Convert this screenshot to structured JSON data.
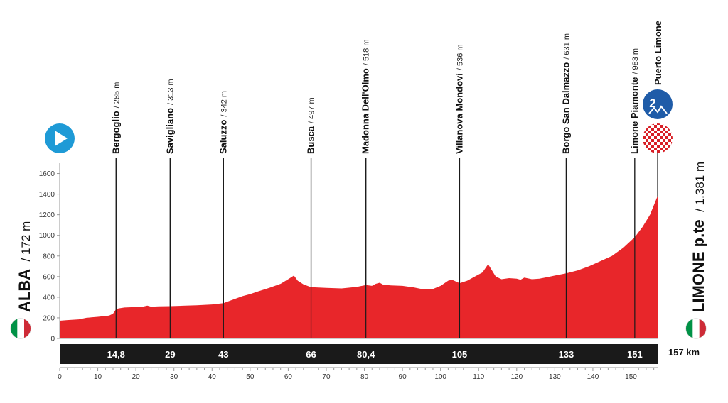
{
  "chart_data": {
    "type": "area",
    "title": "",
    "xlabel": "",
    "ylabel": "",
    "xlim": [
      0,
      157
    ],
    "ylim": [
      0,
      1700
    ],
    "x_ticks": [
      0,
      10,
      20,
      30,
      40,
      50,
      60,
      70,
      80,
      90,
      100,
      110,
      120,
      130,
      140,
      150
    ],
    "y_ticks": [
      0,
      200,
      400,
      600,
      800,
      1000,
      1200,
      1400,
      1600
    ],
    "grid": false,
    "fill_color": "#e8262a",
    "series": [
      {
        "x": [
          0,
          2,
          5,
          7,
          10,
          13,
          14,
          14.8,
          15.5,
          17,
          20,
          22,
          23,
          24,
          26,
          29,
          33,
          36,
          40,
          43,
          45,
          48,
          50,
          52,
          55,
          58,
          60,
          61.5,
          62.5,
          64,
          66,
          70,
          74,
          78,
          80.4,
          82,
          83,
          84,
          85,
          87,
          90,
          93,
          95,
          98,
          100,
          102,
          103,
          105,
          107,
          109,
          111,
          112.5,
          113.5,
          114.5,
          116,
          118,
          120,
          121,
          122,
          124,
          126,
          128,
          130,
          133,
          136,
          139,
          142,
          145,
          148,
          151,
          153,
          155,
          157
        ],
        "y": [
          172,
          178,
          185,
          200,
          210,
          222,
          240,
          285,
          292,
          300,
          305,
          310,
          318,
          308,
          312,
          313,
          318,
          322,
          330,
          342,
          370,
          410,
          430,
          455,
          490,
          530,
          575,
          610,
          560,
          525,
          497,
          490,
          485,
          500,
          518,
          510,
          530,
          540,
          520,
          515,
          510,
          495,
          480,
          480,
          510,
          560,
          570,
          536,
          560,
          600,
          640,
          720,
          660,
          600,
          575,
          585,
          580,
          570,
          590,
          575,
          580,
          595,
          610,
          631,
          660,
          700,
          750,
          800,
          880,
          983,
          1080,
          1200,
          1381
        ]
      }
    ],
    "waypoints": [
      {
        "name": "Bergoglio",
        "elev": "/ 285 m",
        "km": 14.8,
        "km_label": "14,8"
      },
      {
        "name": "Savigliano",
        "elev": "/ 313 m",
        "km": 29,
        "km_label": "29"
      },
      {
        "name": "Saluzzo",
        "elev": "/ 342 m",
        "km": 43,
        "km_label": "43"
      },
      {
        "name": "Busca",
        "elev": "/ 497 m",
        "km": 66,
        "km_label": "66"
      },
      {
        "name": "Madonna Dell'Olmo",
        "elev": "/ 518 m",
        "km": 80.4,
        "km_label": "80,4"
      },
      {
        "name": "Villanova Mondovì",
        "elev": "/ 536 m",
        "km": 105,
        "km_label": "105"
      },
      {
        "name": "Borgo San Dalmazzo",
        "elev": "/ 631 m",
        "km": 133,
        "km_label": "133"
      },
      {
        "name": "Limone Piamonte",
        "elev": "/ 983 m",
        "km": 151,
        "km_label": "151"
      }
    ],
    "finish_climb": {
      "name": "Puerto Limone",
      "category": "2"
    },
    "start": {
      "name": "ALBA",
      "elev": "/ 172 m"
    },
    "finish": {
      "name": "LIMONE p.te",
      "elev": "/ 1.381 m"
    },
    "total_distance": "157 km",
    "colors": {
      "profile": "#e8262a",
      "km_bar": "#1a1a1a",
      "start_marker": "#1e9ad6",
      "climb_badge": "#1f5ca8",
      "finish_check": "#d81f26",
      "italy_green": "#009246",
      "italy_red": "#ce2b37"
    },
    "icons": {
      "start": "play-icon",
      "climb": "mountain-category-icon",
      "finish": "checkered-flag-icon",
      "country": "italy-flag-icon"
    }
  }
}
